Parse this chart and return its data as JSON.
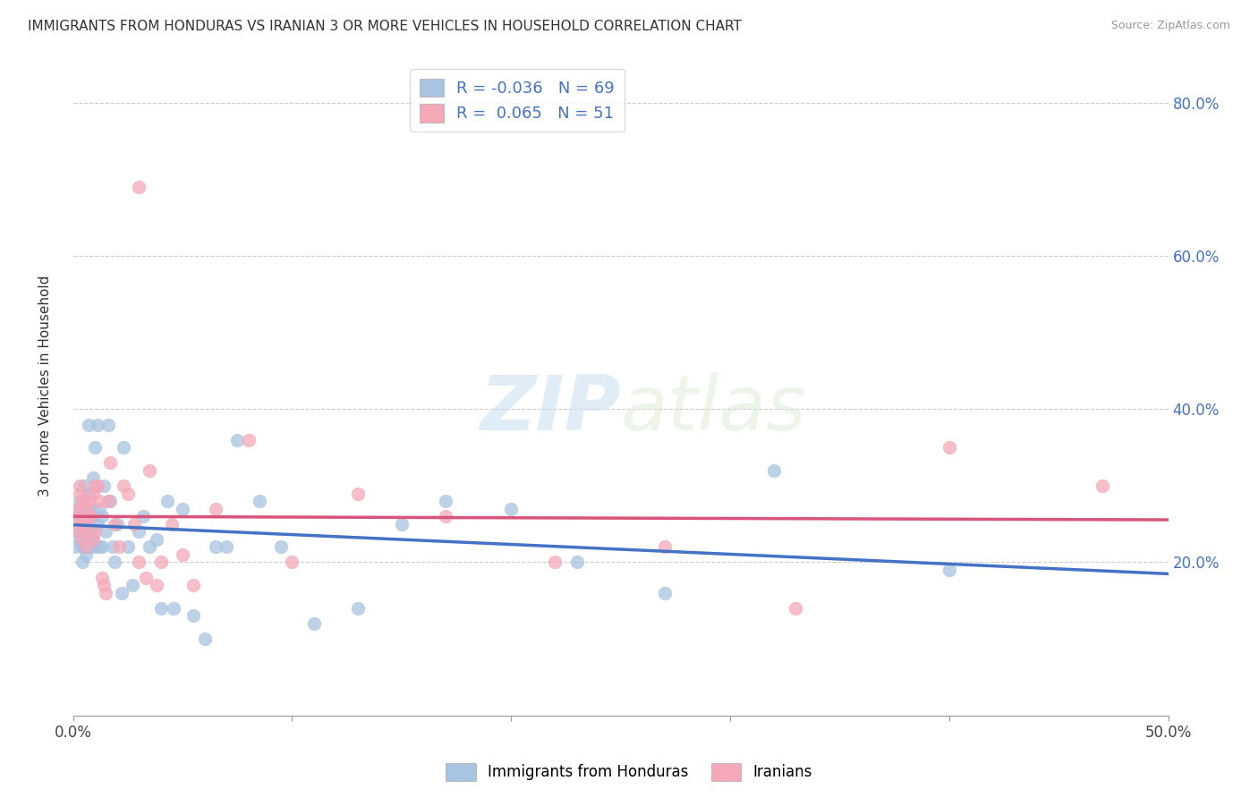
{
  "title": "IMMIGRANTS FROM HONDURAS VS IRANIAN 3 OR MORE VEHICLES IN HOUSEHOLD CORRELATION CHART",
  "source": "Source: ZipAtlas.com",
  "ylabel": "3 or more Vehicles in Household",
  "ytick_vals": [
    0.2,
    0.4,
    0.6,
    0.8
  ],
  "xlim": [
    0.0,
    0.5
  ],
  "ylim": [
    0.0,
    0.86
  ],
  "legend_r_honduras": "-0.036",
  "legend_n_honduras": "69",
  "legend_r_iranians": "0.065",
  "legend_n_iranians": "51",
  "color_honduras": "#a8c4e0",
  "color_iranians": "#f4a8b8",
  "trendline_honduras_color": "#4472c4",
  "trendline_iranians_color": "#d9547a",
  "watermark_zip": "ZIP",
  "watermark_atlas": "atlas",
  "title_fontsize": 11,
  "source_fontsize": 9,
  "honduras_x": [
    0.001,
    0.002,
    0.002,
    0.003,
    0.003,
    0.003,
    0.004,
    0.004,
    0.004,
    0.005,
    0.005,
    0.005,
    0.005,
    0.006,
    0.006,
    0.006,
    0.007,
    0.007,
    0.007,
    0.007,
    0.008,
    0.008,
    0.008,
    0.009,
    0.009,
    0.009,
    0.01,
    0.01,
    0.011,
    0.011,
    0.012,
    0.012,
    0.013,
    0.013,
    0.014,
    0.015,
    0.016,
    0.017,
    0.018,
    0.019,
    0.02,
    0.022,
    0.023,
    0.025,
    0.027,
    0.03,
    0.032,
    0.035,
    0.038,
    0.04,
    0.043,
    0.046,
    0.05,
    0.055,
    0.06,
    0.065,
    0.07,
    0.075,
    0.085,
    0.095,
    0.11,
    0.13,
    0.15,
    0.17,
    0.2,
    0.23,
    0.27,
    0.32,
    0.4
  ],
  "honduras_y": [
    0.22,
    0.26,
    0.24,
    0.27,
    0.23,
    0.28,
    0.25,
    0.22,
    0.2,
    0.28,
    0.24,
    0.22,
    0.3,
    0.26,
    0.23,
    0.21,
    0.29,
    0.25,
    0.22,
    0.38,
    0.27,
    0.24,
    0.22,
    0.31,
    0.23,
    0.26,
    0.35,
    0.22,
    0.38,
    0.25,
    0.27,
    0.22,
    0.26,
    0.22,
    0.3,
    0.24,
    0.38,
    0.28,
    0.22,
    0.2,
    0.25,
    0.16,
    0.35,
    0.22,
    0.17,
    0.24,
    0.26,
    0.22,
    0.23,
    0.14,
    0.28,
    0.14,
    0.27,
    0.13,
    0.1,
    0.22,
    0.22,
    0.36,
    0.28,
    0.22,
    0.12,
    0.14,
    0.25,
    0.28,
    0.27,
    0.2,
    0.16,
    0.32,
    0.19
  ],
  "iranians_x": [
    0.001,
    0.002,
    0.002,
    0.003,
    0.003,
    0.003,
    0.004,
    0.004,
    0.005,
    0.005,
    0.005,
    0.006,
    0.006,
    0.007,
    0.007,
    0.008,
    0.009,
    0.009,
    0.01,
    0.01,
    0.011,
    0.012,
    0.013,
    0.014,
    0.015,
    0.016,
    0.017,
    0.019,
    0.021,
    0.023,
    0.025,
    0.028,
    0.03,
    0.033,
    0.035,
    0.038,
    0.04,
    0.045,
    0.05,
    0.055,
    0.065,
    0.08,
    0.1,
    0.13,
    0.17,
    0.22,
    0.27,
    0.33,
    0.4,
    0.47,
    0.03
  ],
  "iranians_y": [
    0.25,
    0.24,
    0.27,
    0.29,
    0.26,
    0.3,
    0.28,
    0.23,
    0.28,
    0.25,
    0.24,
    0.27,
    0.22,
    0.28,
    0.26,
    0.26,
    0.23,
    0.29,
    0.24,
    0.3,
    0.3,
    0.28,
    0.18,
    0.17,
    0.16,
    0.28,
    0.33,
    0.25,
    0.22,
    0.3,
    0.29,
    0.25,
    0.2,
    0.18,
    0.32,
    0.17,
    0.2,
    0.25,
    0.21,
    0.17,
    0.27,
    0.36,
    0.2,
    0.29,
    0.26,
    0.2,
    0.22,
    0.14,
    0.35,
    0.3,
    0.69
  ]
}
